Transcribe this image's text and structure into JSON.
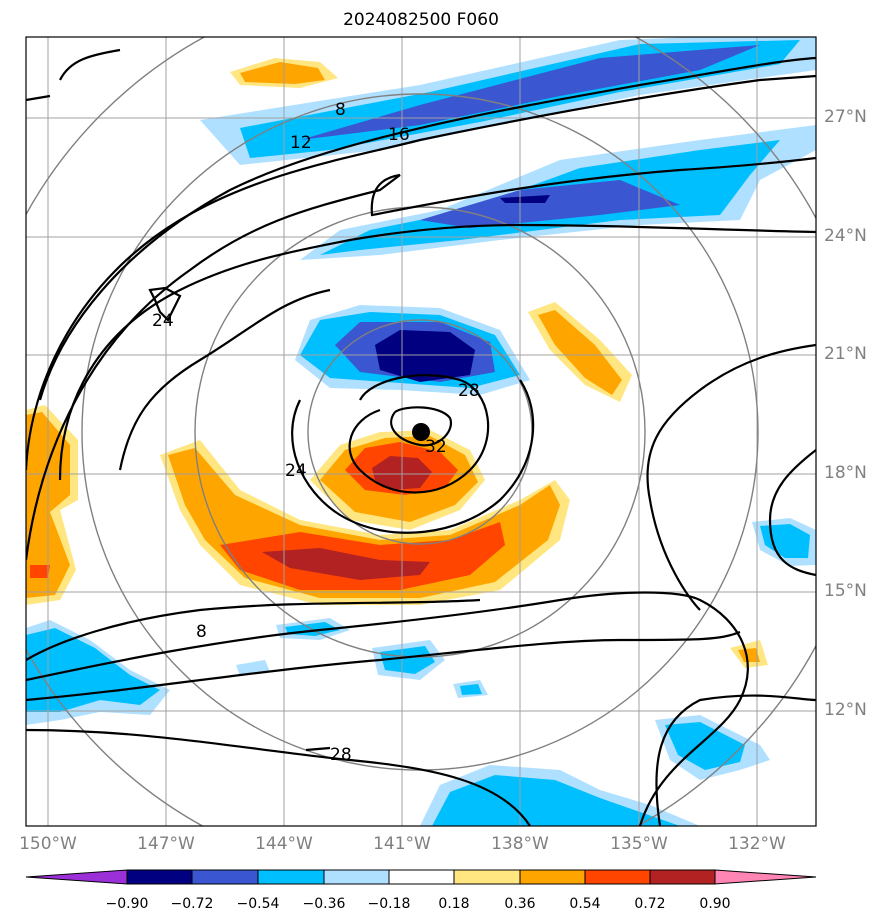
{
  "title": "2024082500 F060",
  "map": {
    "lon_labels": [
      "150°W",
      "147°W",
      "144°W",
      "141°W",
      "138°W",
      "135°W",
      "132°W"
    ],
    "lat_labels": [
      "27°N",
      "24°N",
      "21°N",
      "18°N",
      "15°N",
      "12°N"
    ],
    "contour_labels": [
      "8",
      "12",
      "16",
      "24",
      "28",
      "32",
      "24",
      "8",
      "28"
    ],
    "grid_color": "#a0a0a0",
    "range_ring_color": "#808080",
    "storm_center_marker": "black-dot"
  },
  "colorbar": {
    "ticks": [
      "−0.90",
      "−0.72",
      "−0.54",
      "−0.36",
      "−0.18",
      "0.18",
      "0.36",
      "0.54",
      "0.72",
      "0.90"
    ],
    "colors": [
      "#9b30d9",
      "#000080",
      "#3a56d0",
      "#00bfff",
      "#b0e0ff",
      "#ffffff",
      "#ffe680",
      "#ffa500",
      "#ff4500",
      "#b22222",
      "#ff85b4"
    ],
    "extend": "both"
  }
}
